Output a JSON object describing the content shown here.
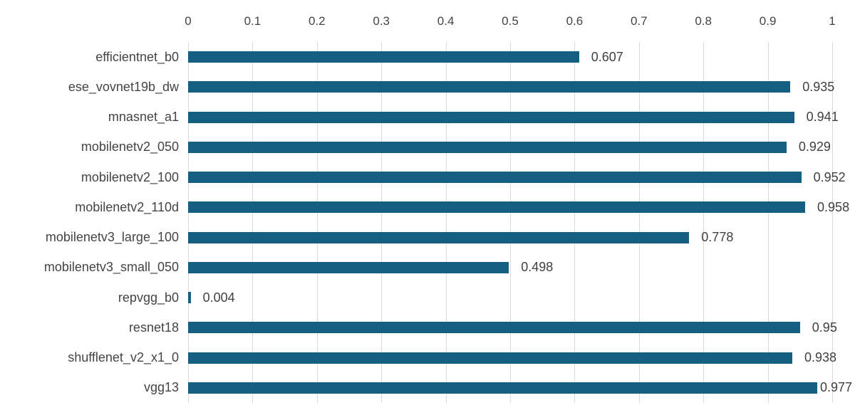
{
  "chart_data": {
    "type": "bar",
    "orientation": "horizontal",
    "title": "",
    "xlabel": "",
    "ylabel": "",
    "categories": [
      "efficientnet_b0",
      "ese_vovnet19b_dw",
      "mnasnet_a1",
      "mobilenetv2_050",
      "mobilenetv2_100",
      "mobilenetv2_110d",
      "mobilenetv3_large_100",
      "mobilenetv3_small_050",
      "repvgg_b0",
      "resnet18",
      "shufflenet_v2_x1_0",
      "vgg13"
    ],
    "values": [
      0.607,
      0.935,
      0.941,
      0.929,
      0.952,
      0.958,
      0.778,
      0.498,
      0.004,
      0.95,
      0.938,
      0.977
    ],
    "value_labels": [
      "0.607",
      "0.935",
      "0.941",
      "0.929",
      "0.952",
      "0.958",
      "0.778",
      "0.498",
      "0.004",
      "0.95",
      "0.938",
      "0.977"
    ],
    "x_axis": {
      "position": "top",
      "min": 0,
      "max": 1,
      "tick_step": 0.1,
      "ticks": [
        "0",
        "0.1",
        "0.2",
        "0.3",
        "0.4",
        "0.5",
        "0.6",
        "0.7",
        "0.8",
        "0.9",
        "1"
      ]
    },
    "grid": "vertical-gridlines-on",
    "legend": "none",
    "colors": {
      "bar": "#156082",
      "gridline": "#d9d9d9",
      "tick_text": "#444444",
      "value_text": "#404040",
      "category_text": "#444444",
      "background": "#ffffff"
    }
  }
}
